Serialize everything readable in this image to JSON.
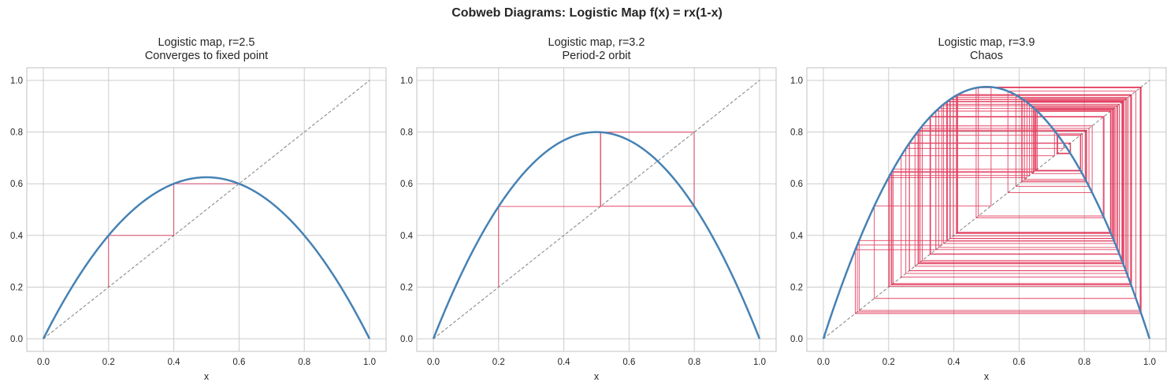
{
  "figure": {
    "suptitle": "Cobweb Diagrams: Logistic Map f(x) = rx(1-x)"
  },
  "colors": {
    "curve": "#4682b4",
    "cobweb": "#dc143c",
    "diagonal": "#808080",
    "grid": "#cccccc",
    "frame": "#cccccc"
  },
  "panels": [
    {
      "title_line1": "Logistic map, r=2.5",
      "title_line2": "Converges to fixed point",
      "xlabel": "x"
    },
    {
      "title_line1": "Logistic map, r=3.2",
      "title_line2": "Period-2 orbit",
      "xlabel": "x"
    },
    {
      "title_line1": "Logistic map, r=3.9",
      "title_line2": "Chaos",
      "xlabel": "x"
    }
  ],
  "chart_data": [
    {
      "type": "line",
      "title": "Logistic map, r=2.5\nConverges to fixed point",
      "xlabel": "x",
      "ylabel": "",
      "xlim": [
        -0.05,
        1.05
      ],
      "ylim": [
        -0.05,
        1.05
      ],
      "xticks": [
        "0.0",
        "0.2",
        "0.4",
        "0.6",
        "0.8",
        "1.0"
      ],
      "yticks": [
        "0.0",
        "0.2",
        "0.4",
        "0.6",
        "0.8",
        "1.0"
      ],
      "grid": true,
      "r": 2.5,
      "x0": 0.2,
      "iterations": 50,
      "series": [
        {
          "name": "f(x) = 2.5x(1-x)",
          "style": "solid",
          "color": "#4682b4"
        },
        {
          "name": "y = x",
          "style": "dashed",
          "color": "#808080"
        },
        {
          "name": "cobweb",
          "color": "#dc143c",
          "orbit_start": [
            0.2,
            0.4,
            0.6,
            0.6
          ]
        }
      ]
    },
    {
      "type": "line",
      "title": "Logistic map, r=3.2\nPeriod-2 orbit",
      "xlabel": "x",
      "ylabel": "",
      "xlim": [
        -0.05,
        1.05
      ],
      "ylim": [
        -0.05,
        1.05
      ],
      "xticks": [
        "0.0",
        "0.2",
        "0.4",
        "0.6",
        "0.8",
        "1.0"
      ],
      "yticks": [
        "0.0",
        "0.2",
        "0.4",
        "0.6",
        "0.8",
        "1.0"
      ],
      "grid": true,
      "r": 3.2,
      "x0": 0.2,
      "iterations": 50,
      "series": [
        {
          "name": "f(x) = 3.2x(1-x)",
          "style": "solid",
          "color": "#4682b4"
        },
        {
          "name": "y = x",
          "style": "dashed",
          "color": "#808080"
        },
        {
          "name": "cobweb",
          "color": "#dc143c",
          "orbit_start": [
            0.2,
            0.512,
            0.7995,
            0.513
          ]
        }
      ]
    },
    {
      "type": "line",
      "title": "Logistic map, r=3.9\nChaos",
      "xlabel": "x",
      "ylabel": "",
      "xlim": [
        -0.05,
        1.05
      ],
      "ylim": [
        -0.05,
        1.05
      ],
      "xticks": [
        "0.0",
        "0.2",
        "0.4",
        "0.6",
        "0.8",
        "1.0"
      ],
      "yticks": [
        "0.0",
        "0.2",
        "0.4",
        "0.6",
        "0.8",
        "1.0"
      ],
      "grid": true,
      "r": 3.9,
      "x0": 0.2,
      "iterations": 100,
      "series": [
        {
          "name": "f(x) = 3.9x(1-x)",
          "style": "solid",
          "color": "#4682b4"
        },
        {
          "name": "y = x",
          "style": "dashed",
          "color": "#808080"
        },
        {
          "name": "cobweb",
          "color": "#dc143c",
          "orbit_start": [
            0.2,
            0.624,
            0.915,
            0.303
          ]
        }
      ]
    }
  ]
}
